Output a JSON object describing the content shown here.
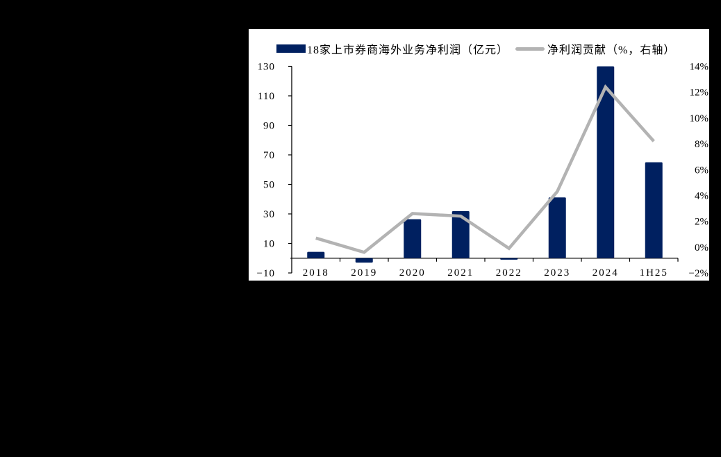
{
  "legend": {
    "bar_label": "18家上市券商海外业务净利润（亿元）",
    "line_label": "净利润贡献（%，右轴）"
  },
  "colors": {
    "bar": "#002060",
    "line": "#b3b3b3",
    "background": "#ffffff",
    "frame": "#000000"
  },
  "chart_data": {
    "type": "bar",
    "title": "",
    "categories": [
      "2018",
      "2019",
      "2020",
      "2021",
      "2022",
      "2023",
      "2024",
      "1H25"
    ],
    "series": [
      {
        "name": "18家上市券商海外业务净利润（亿元）",
        "type": "bar",
        "axis": "left",
        "values": [
          4.3,
          -3.0,
          26.4,
          31.9,
          -1.0,
          41.2,
          130.5,
          65.0
        ]
      },
      {
        "name": "净利润贡献（%，右轴）",
        "type": "line",
        "axis": "right",
        "values": [
          0.7,
          -0.4,
          2.6,
          2.4,
          -0.1,
          4.3,
          12.4,
          8.2
        ]
      }
    ],
    "left_axis": {
      "ylim": [
        -10,
        130
      ],
      "ticks": [
        "130",
        "110",
        "90",
        "70",
        "50",
        "30",
        "10",
        "-10"
      ]
    },
    "right_axis": {
      "ylim": [
        -2,
        14
      ],
      "ticks": [
        "14%",
        "12%",
        "10%",
        "8%",
        "6%",
        "4%",
        "2%",
        "0%",
        "-2%"
      ]
    },
    "xlabel": "",
    "ylabel": "",
    "grid": false,
    "legend_position": "top"
  }
}
